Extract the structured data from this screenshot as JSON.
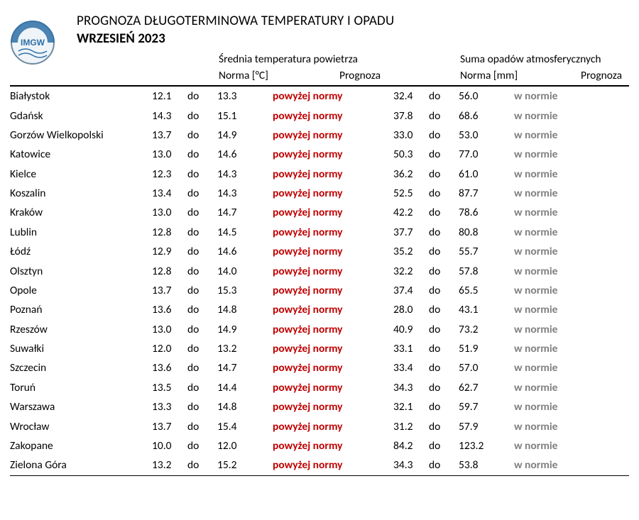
{
  "header": {
    "title": "PROGNOZA DŁUGOTERMINOWA TEMPERATURY I OPADU",
    "subtitle": "WRZESIEŃ 2023",
    "section_temp": "Średnia temperatura powietrza",
    "section_precip": "Suma opadów atmosferycznych",
    "norma_temp": "Norma [°C]",
    "norma_precip": "Norma [mm]",
    "prognoza": "Prognoza",
    "do_label": "do"
  },
  "style": {
    "forecast_above_color": "#c00000",
    "forecast_normal_color": "#7f7f7f",
    "border_color": "#000000",
    "background": "#ffffff",
    "font_family": "Calibri, Segoe UI, Arial, sans-serif"
  },
  "labels": {
    "above": "powyżej normy",
    "normal": "w normie"
  },
  "rows": [
    {
      "city": "Białystok",
      "t1": "12.1",
      "t2": "13.3",
      "tprog": "above",
      "p1": "32.4",
      "p2": "56.0",
      "pprog": "normal"
    },
    {
      "city": "Gdańsk",
      "t1": "14.3",
      "t2": "15.1",
      "tprog": "above",
      "p1": "37.8",
      "p2": "68.6",
      "pprog": "normal"
    },
    {
      "city": "Gorzów Wielkopolski",
      "t1": "13.7",
      "t2": "14.9",
      "tprog": "above",
      "p1": "33.0",
      "p2": "53.0",
      "pprog": "normal"
    },
    {
      "city": "Katowice",
      "t1": "13.0",
      "t2": "14.6",
      "tprog": "above",
      "p1": "50.3",
      "p2": "77.0",
      "pprog": "normal"
    },
    {
      "city": "Kielce",
      "t1": "12.3",
      "t2": "14.3",
      "tprog": "above",
      "p1": "36.2",
      "p2": "61.0",
      "pprog": "normal"
    },
    {
      "city": "Koszalin",
      "t1": "13.4",
      "t2": "14.3",
      "tprog": "above",
      "p1": "52.5",
      "p2": "87.7",
      "pprog": "normal"
    },
    {
      "city": "Kraków",
      "t1": "13.0",
      "t2": "14.7",
      "tprog": "above",
      "p1": "42.2",
      "p2": "78.6",
      "pprog": "normal"
    },
    {
      "city": "Lublin",
      "t1": "12.8",
      "t2": "14.5",
      "tprog": "above",
      "p1": "37.7",
      "p2": "80.8",
      "pprog": "normal"
    },
    {
      "city": "Łódź",
      "t1": "12.9",
      "t2": "14.6",
      "tprog": "above",
      "p1": "35.2",
      "p2": "55.7",
      "pprog": "normal"
    },
    {
      "city": "Olsztyn",
      "t1": "12.8",
      "t2": "14.0",
      "tprog": "above",
      "p1": "32.2",
      "p2": "57.8",
      "pprog": "normal"
    },
    {
      "city": "Opole",
      "t1": "13.7",
      "t2": "15.3",
      "tprog": "above",
      "p1": "37.4",
      "p2": "65.5",
      "pprog": "normal"
    },
    {
      "city": "Poznań",
      "t1": "13.6",
      "t2": "14.8",
      "tprog": "above",
      "p1": "28.0",
      "p2": "43.1",
      "pprog": "normal"
    },
    {
      "city": "Rzeszów",
      "t1": "13.0",
      "t2": "14.9",
      "tprog": "above",
      "p1": "40.9",
      "p2": "73.2",
      "pprog": "normal"
    },
    {
      "city": "Suwałki",
      "t1": "12.0",
      "t2": "13.2",
      "tprog": "above",
      "p1": "33.1",
      "p2": "51.9",
      "pprog": "normal"
    },
    {
      "city": "Szczecin",
      "t1": "13.6",
      "t2": "14.7",
      "tprog": "above",
      "p1": "33.4",
      "p2": "57.0",
      "pprog": "normal"
    },
    {
      "city": "Toruń",
      "t1": "13.5",
      "t2": "14.4",
      "tprog": "above",
      "p1": "34.3",
      "p2": "62.7",
      "pprog": "normal"
    },
    {
      "city": "Warszawa",
      "t1": "13.3",
      "t2": "14.8",
      "tprog": "above",
      "p1": "32.1",
      "p2": "59.7",
      "pprog": "normal"
    },
    {
      "city": "Wrocław",
      "t1": "13.7",
      "t2": "15.4",
      "tprog": "above",
      "p1": "31.2",
      "p2": "57.9",
      "pprog": "normal"
    },
    {
      "city": "Zakopane",
      "t1": "10.0",
      "t2": "12.0",
      "tprog": "above",
      "p1": "84.2",
      "p2": "123.2",
      "pprog": "normal"
    },
    {
      "city": "Zielona Góra",
      "t1": "13.2",
      "t2": "15.2",
      "tprog": "above",
      "p1": "34.3",
      "p2": "53.8",
      "pprog": "normal"
    }
  ]
}
